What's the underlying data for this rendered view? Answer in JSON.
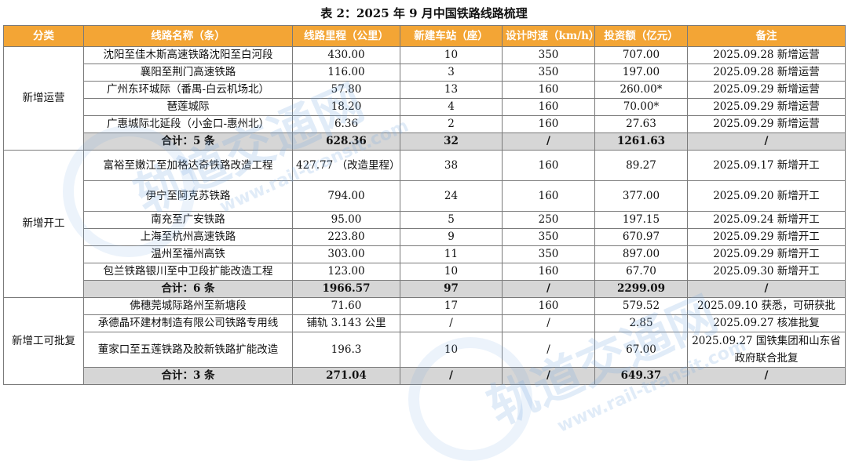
{
  "title": "表 2：2025 年 9 月中国铁路线路梳理",
  "headers": [
    "分类",
    "线路名称（条）",
    "线路里程（公里）",
    "新建车站（座）",
    "设计时速（km/h）",
    "投资额（亿元）",
    "备注"
  ],
  "groups": [
    {
      "category": "新增运营",
      "rows": [
        [
          "沈阳至佳木斯高速铁路沈阳至白河段",
          "430.00",
          "10",
          "350",
          "707.00",
          "2025.09.28 新增运营"
        ],
        [
          "襄阳至荆门高速铁路",
          "116.00",
          "3",
          "350",
          "197.00",
          "2025.09.28 新增运营"
        ],
        [
          "广州东环城际（番禺-白云机场北）",
          "57.80",
          "13",
          "160",
          "260.00*",
          "2025.09.29 新增运营"
        ],
        [
          "琶莲城际",
          "18.20",
          "4",
          "160",
          "70.00*",
          "2025.09.29 新增运营"
        ],
        [
          "广惠城际北延段（小金口-惠州北）",
          "6.36",
          "2",
          "160",
          "27.63",
          "2025.09.29 新增运营"
        ]
      ],
      "total": [
        "合计：5 条",
        "628.36",
        "32",
        "/",
        "1261.63",
        "/"
      ]
    },
    {
      "category": "新增开工",
      "rows": [
        [
          "富裕至嫩江至加格达奇铁路改造工程",
          "427.77 （改造里程）",
          "38",
          "160",
          "89.27",
          "2025.09.17 新增开工"
        ],
        [
          "伊宁至阿克苏铁路",
          "794.00",
          "24",
          "160",
          "377.00",
          "2025.09.20 新增开工"
        ],
        [
          "南充至广安铁路",
          "95.00",
          "5",
          "250",
          "197.15",
          "2025.09.24 新增开工"
        ],
        [
          "上海至杭州高速铁路",
          "223.80",
          "9",
          "350",
          "670.97",
          "2025.09.29 新增开工"
        ],
        [
          "温州至福州高铁",
          "303.00",
          "11",
          "350",
          "897.00",
          "2025.09.29 新增开工"
        ],
        [
          "包兰铁路银川至中卫段扩能改造工程",
          "123.00",
          "10",
          "160",
          "67.70",
          "2025.09.30 新增开工"
        ]
      ],
      "total": [
        "合计：6 条",
        "1966.57",
        "97",
        "/",
        "2299.09",
        "/"
      ]
    },
    {
      "category": "新增工可批复",
      "rows": [
        [
          "佛穗莞城际路州至新塘段",
          "71.60",
          "17",
          "160",
          "579.52",
          "2025.09.10 获悉，可研获批"
        ],
        [
          "承德晶环建材制造有限公司铁路专用线",
          "铺轨 3.143 公里",
          "/",
          "/",
          "2.85",
          "2025.09.27 核准批复"
        ],
        [
          "董家口至五莲铁路及胶新铁路扩能改造",
          "196.3",
          "10",
          "/",
          "67.00",
          "2025.09.27 国铁集团和山东省政府联合批复"
        ]
      ],
      "total": [
        "合计：3 条",
        "271.04",
        "/",
        "/",
        "649.37",
        "/"
      ]
    }
  ],
  "watermark": {
    "text_cn": "轨道交通网",
    "text_url": "www.rail-transit.com"
  },
  "colors": {
    "header_bg": "#f3a535",
    "total_bg": "#d6d6d6",
    "border": "#7a7a7a"
  }
}
